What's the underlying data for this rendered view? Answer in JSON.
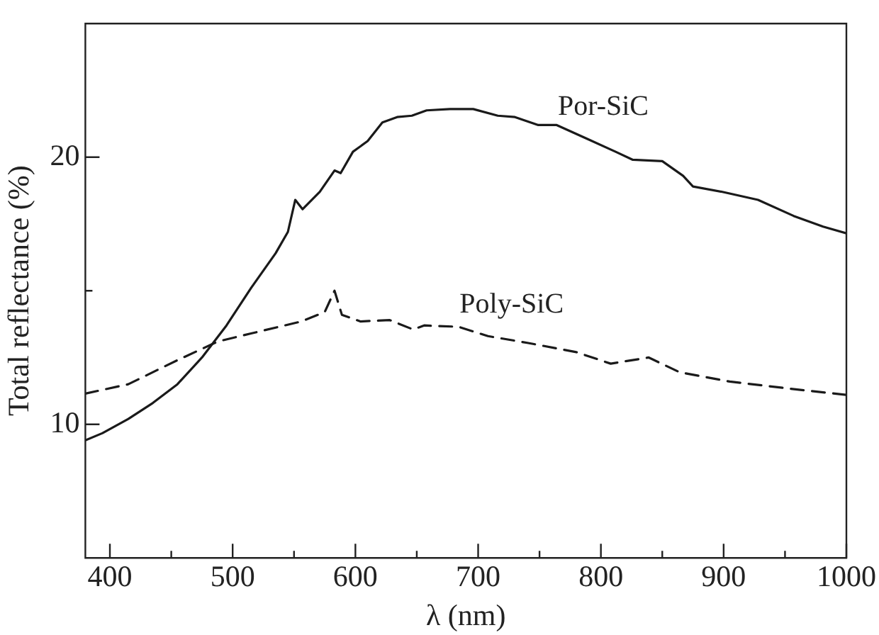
{
  "chart_data": {
    "type": "line",
    "xlabel": "λ (nm)",
    "ylabel": "Total reflectance (%)",
    "xlim": [
      380,
      1000
    ],
    "ylim": [
      5,
      25
    ],
    "xticks": [
      400,
      {
        "value": 450,
        "label": null
      },
      500,
      {
        "value": 550,
        "label": null
      },
      600,
      {
        "value": 650,
        "label": null
      },
      700,
      {
        "value": 750,
        "label": null
      },
      800,
      {
        "value": 850,
        "label": null
      },
      900,
      {
        "value": 950,
        "label": null
      },
      1000
    ],
    "yticks": [
      10,
      {
        "value": 15,
        "label": null
      },
      20
    ],
    "grid": false,
    "legend": false,
    "marker": "none",
    "series": [
      {
        "name": "Por-SiC",
        "color": "#1a1a1a",
        "line_style": "solid",
        "x": [
          380,
          394,
          415,
          435,
          455,
          475,
          495,
          515,
          535,
          545,
          551,
          557,
          571,
          583,
          588,
          598,
          610,
          622,
          634,
          646,
          658,
          677,
          696,
          716,
          730,
          749,
          764,
          788,
          812,
          826,
          850,
          867,
          875,
          899,
          928,
          957,
          981,
          1000
        ],
        "values": [
          9.4,
          9.67,
          10.2,
          10.8,
          11.5,
          12.5,
          13.7,
          15.1,
          16.4,
          17.2,
          18.4,
          18.05,
          18.7,
          19.5,
          19.4,
          20.2,
          20.6,
          21.3,
          21.5,
          21.55,
          21.75,
          21.8,
          21.8,
          21.55,
          21.5,
          21.2,
          21.2,
          20.7,
          20.2,
          19.9,
          19.85,
          19.3,
          18.9,
          18.7,
          18.4,
          17.8,
          17.4,
          17.15
        ]
      },
      {
        "name": "Poly-SiC",
        "color": "#1a1a1a",
        "line_style": "dashed",
        "x": [
          380,
          415,
          455,
          488,
          515,
          556,
          575,
          583,
          589,
          604,
          628,
          647,
          656,
          684,
          708,
          740,
          780,
          808,
          839,
          864,
          905,
          960,
          1000
        ],
        "values": [
          11.15,
          11.5,
          12.4,
          13.1,
          13.4,
          13.85,
          14.2,
          15.0,
          14.1,
          13.85,
          13.9,
          13.55,
          13.7,
          13.65,
          13.3,
          13.05,
          12.7,
          12.27,
          12.5,
          11.95,
          11.6,
          11.3,
          11.1
        ]
      }
    ]
  }
}
